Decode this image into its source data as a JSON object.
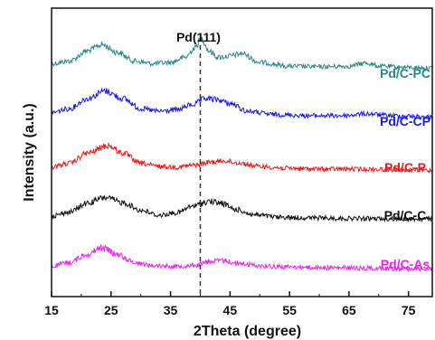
{
  "chart_data": {
    "type": "line",
    "title": "",
    "xlabel": "2Theta (degree)",
    "ylabel": "Intensity (a.u.)",
    "xlim": [
      15,
      79
    ],
    "x_ticks": [
      15,
      25,
      35,
      45,
      55,
      65,
      75
    ],
    "y_ticks_shown": false,
    "grid": false,
    "annotations": [
      {
        "text": "Pd(111)",
        "x": 40,
        "style": "dashed-vertical-line"
      }
    ],
    "series": [
      {
        "name": "Pd/C-PC",
        "color": "#2a8a86",
        "points": [
          [
            15,
            0.4
          ],
          [
            18,
            0.6
          ],
          [
            21,
            1.4
          ],
          [
            23.5,
            1.9
          ],
          [
            26,
            1.3
          ],
          [
            29,
            0.6
          ],
          [
            32,
            0.4
          ],
          [
            35,
            0.5
          ],
          [
            37.5,
            0.9
          ],
          [
            39,
            1.6
          ],
          [
            40.2,
            2.4
          ],
          [
            41.5,
            1.4
          ],
          [
            43,
            0.9
          ],
          [
            45,
            1.0
          ],
          [
            47,
            1.2
          ],
          [
            50,
            0.5
          ],
          [
            55,
            0.2
          ],
          [
            60,
            0.15
          ],
          [
            65,
            0.2
          ],
          [
            68,
            0.45
          ],
          [
            70,
            0.2
          ],
          [
            75,
            0.1
          ],
          [
            79,
            0.05
          ]
        ]
      },
      {
        "name": "Pd/C-CP",
        "color": "#1a1aee",
        "points": [
          [
            15,
            0.4
          ],
          [
            18,
            0.7
          ],
          [
            21,
            1.5
          ],
          [
            24,
            2.1
          ],
          [
            27,
            1.5
          ],
          [
            30,
            0.7
          ],
          [
            33,
            0.5
          ],
          [
            36,
            0.6
          ],
          [
            38.5,
            1.0
          ],
          [
            41,
            1.5
          ],
          [
            43,
            1.4
          ],
          [
            45,
            1.1
          ],
          [
            48,
            0.5
          ],
          [
            52,
            0.25
          ],
          [
            58,
            0.15
          ],
          [
            64,
            0.15
          ],
          [
            68,
            0.3
          ],
          [
            72,
            0.15
          ],
          [
            79,
            0.05
          ]
        ]
      },
      {
        "name": "Pd/C-P",
        "color": "#ee1a1a",
        "points": [
          [
            15,
            0.3
          ],
          [
            18,
            0.6
          ],
          [
            21,
            1.4
          ],
          [
            24.5,
            2.0
          ],
          [
            27,
            1.4
          ],
          [
            30,
            0.6
          ],
          [
            33,
            0.35
          ],
          [
            36,
            0.3
          ],
          [
            39,
            0.45
          ],
          [
            42,
            0.7
          ],
          [
            44,
            0.8
          ],
          [
            46,
            0.65
          ],
          [
            50,
            0.35
          ],
          [
            55,
            0.2
          ],
          [
            60,
            0.15
          ],
          [
            65,
            0.15
          ],
          [
            70,
            0.12
          ],
          [
            79,
            0.05
          ]
        ]
      },
      {
        "name": "Pd/C-C",
        "color": "#111111",
        "points": [
          [
            15,
            0.3
          ],
          [
            18,
            0.6
          ],
          [
            21,
            1.3
          ],
          [
            24,
            1.75
          ],
          [
            27,
            1.35
          ],
          [
            30,
            0.75
          ],
          [
            33,
            0.35
          ],
          [
            36,
            0.55
          ],
          [
            39,
            1.1
          ],
          [
            41.5,
            1.45
          ],
          [
            43.5,
            1.3
          ],
          [
            46,
            0.8
          ],
          [
            49,
            0.4
          ],
          [
            53,
            0.2
          ],
          [
            58,
            0.15
          ],
          [
            65,
            0.1
          ],
          [
            79,
            0.05
          ]
        ]
      },
      {
        "name": "Pd/C-As",
        "color": "#ee22ee",
        "points": [
          [
            15,
            0.25
          ],
          [
            18,
            0.55
          ],
          [
            21,
            1.2
          ],
          [
            23.5,
            1.75
          ],
          [
            26,
            1.2
          ],
          [
            29,
            0.55
          ],
          [
            32,
            0.3
          ],
          [
            36,
            0.25
          ],
          [
            39,
            0.35
          ],
          [
            42,
            0.65
          ],
          [
            44,
            0.7
          ],
          [
            46,
            0.5
          ],
          [
            50,
            0.3
          ],
          [
            55,
            0.2
          ],
          [
            60,
            0.15
          ],
          [
            65,
            0.12
          ],
          [
            70,
            0.1
          ],
          [
            79,
            0.05
          ]
        ]
      }
    ]
  }
}
